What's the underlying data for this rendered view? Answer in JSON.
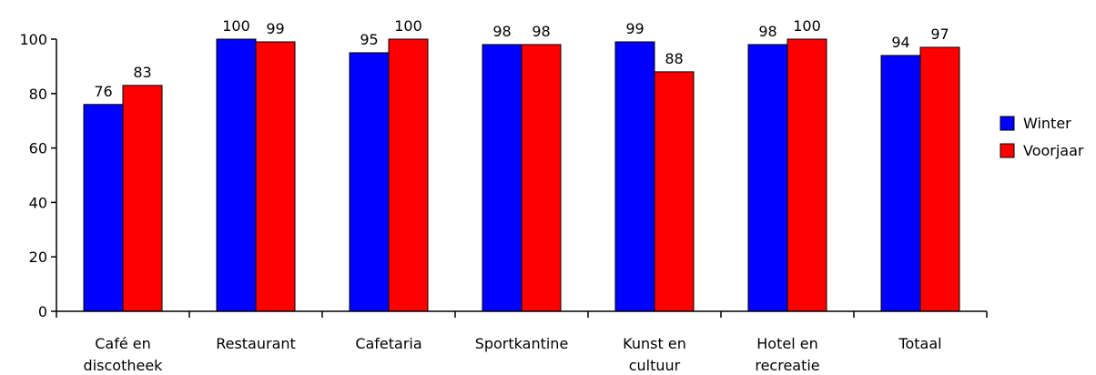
{
  "chart_data": {
    "type": "bar",
    "categories": [
      [
        "Café en",
        "discotheek"
      ],
      [
        "Restaurant"
      ],
      [
        "Cafetaria"
      ],
      [
        "Sportkantine"
      ],
      [
        "Kunst en",
        "cultuur"
      ],
      [
        "Hotel en",
        "recreatie"
      ],
      [
        "Totaal"
      ]
    ],
    "series": [
      {
        "name": "Winter",
        "color": "#0000FF",
        "values": [
          76,
          100,
          95,
          98,
          99,
          98,
          94
        ]
      },
      {
        "name": "Voorjaar",
        "color": "#FF0000",
        "values": [
          83,
          99,
          100,
          98,
          88,
          100,
          97
        ]
      }
    ],
    "ylim": [
      0,
      100
    ],
    "yticks": [
      0,
      20,
      40,
      60,
      80,
      100
    ],
    "grid": false,
    "legend": "right",
    "data_labels": true
  }
}
